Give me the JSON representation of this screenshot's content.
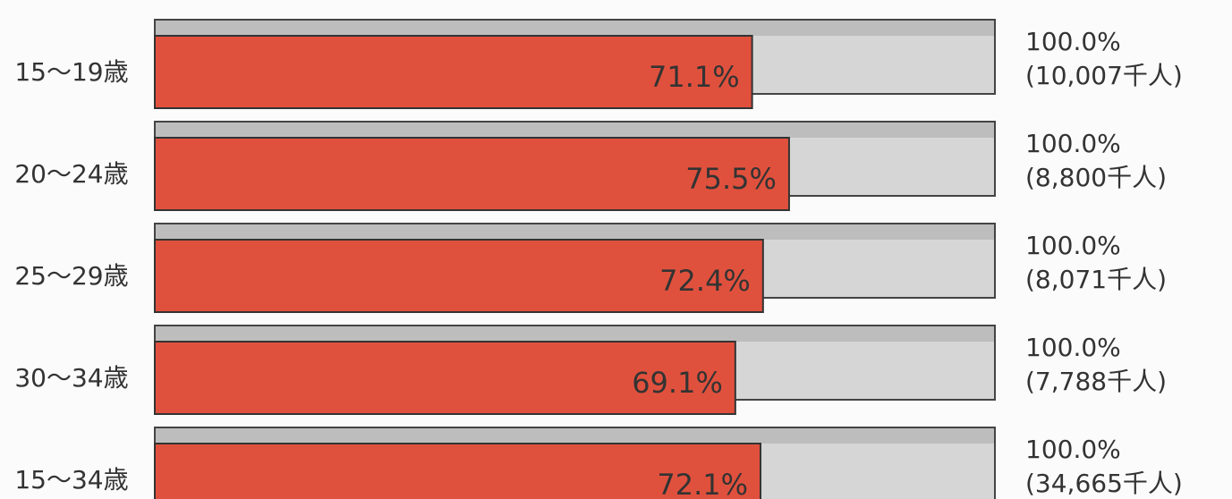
{
  "chart_data": {
    "type": "bar",
    "categories": [
      "15～19歳",
      "20～24歳",
      "25～29歳",
      "30～34歳",
      "15～34歳"
    ],
    "values": [
      71.1,
      75.5,
      72.4,
      69.1,
      72.1
    ],
    "value_labels": [
      "71.1%",
      "75.5%",
      "72.4%",
      "69.1%",
      "72.1%"
    ],
    "color": "#e0513d",
    "background": {
      "values": [
        100,
        100,
        100,
        100,
        100
      ],
      "value_labels": [
        "100.0%",
        "100.0%",
        "100.0%",
        "100.0%",
        "100.0%"
      ],
      "color": "#d6d6d6"
    },
    "totals": [
      "(10,007千人)",
      "(8,800千人)",
      "(8,071千人)",
      "(7,788千人)",
      "(34,665千人)"
    ],
    "xlim": [
      0,
      100
    ]
  }
}
